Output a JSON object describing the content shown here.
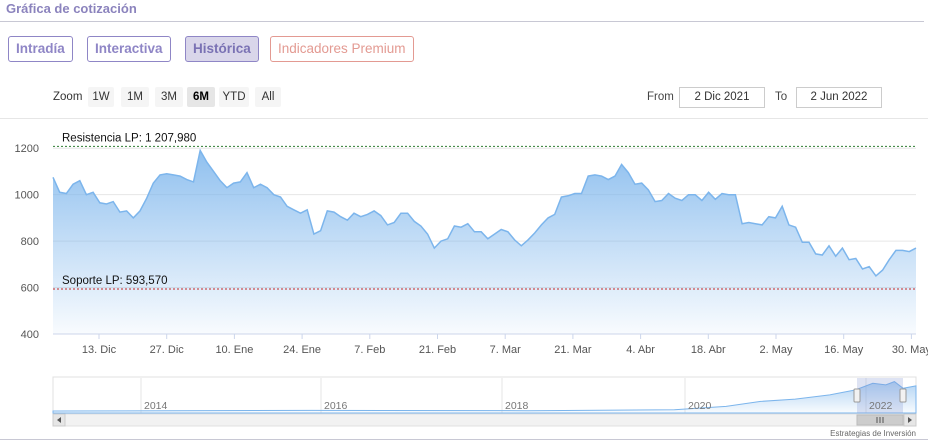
{
  "title": "Gráfica de cotización",
  "tabs": [
    {
      "label": "Intradía"
    },
    {
      "label": "Interactiva"
    },
    {
      "label": "Histórica",
      "active": true
    },
    {
      "label": "Indicadores Premium"
    }
  ],
  "zoom": {
    "label": "Zoom",
    "buttons": [
      "1W",
      "1M",
      "3M",
      "6M",
      "YTD",
      "All"
    ],
    "selected": "6M"
  },
  "range": {
    "from_label": "From",
    "from_value": "2 Dic 2021",
    "to_label": "To",
    "to_value": "2 Jun 2022"
  },
  "colors": {
    "accent": "#8f86c6",
    "premium": "#e39a92",
    "series_line": "#7cb5ec",
    "resistance_line": "#2e7d32",
    "support_line": "#c62828"
  },
  "chart_data": {
    "type": "area",
    "xlabel": "",
    "ylabel": "",
    "ylim": [
      400,
      1300
    ],
    "yticks": [
      400,
      600,
      800,
      1000,
      1200
    ],
    "xticks": [
      "13. Dic",
      "27. Dic",
      "10. Ene",
      "24. Ene",
      "7. Feb",
      "21. Feb",
      "7. Mar",
      "21. Mar",
      "4. Abr",
      "18. Abr",
      "2. May",
      "16. May",
      "30. May"
    ],
    "grid": true,
    "annotations": [
      {
        "label": "Resistencia LP: 1 207,980",
        "value": 1207.98,
        "kind": "resistance"
      },
      {
        "label": "Soporte LP: 593,570",
        "value": 593.57,
        "kind": "support"
      }
    ],
    "series": [
      {
        "values": [
          1075,
          1010,
          1005,
          1045,
          1060,
          1000,
          1010,
          965,
          960,
          970,
          925,
          930,
          900,
          930,
          985,
          1050,
          1085,
          1090,
          1085,
          1080,
          1065,
          1055,
          1190,
          1140,
          1100,
          1060,
          1030,
          1050,
          1055,
          1095,
          1030,
          1045,
          1030,
          1000,
          990,
          950,
          935,
          920,
          935,
          830,
          845,
          930,
          925,
          905,
          890,
          920,
          905,
          915,
          930,
          910,
          870,
          880,
          920,
          920,
          885,
          865,
          830,
          770,
          800,
          810,
          865,
          860,
          875,
          840,
          840,
          810,
          830,
          850,
          840,
          805,
          780,
          805,
          835,
          870,
          900,
          915,
          990,
          995,
          1005,
          1005,
          1080,
          1085,
          1080,
          1065,
          1080,
          1130,
          1095,
          1045,
          1050,
          1020,
          970,
          975,
          1005,
          985,
          975,
          1000,
          1000,
          975,
          1010,
          980,
          1005,
          1000,
          1000,
          875,
          880,
          875,
          870,
          905,
          900,
          950,
          870,
          860,
          795,
          795,
          745,
          740,
          780,
          735,
          770,
          720,
          725,
          680,
          690,
          650,
          675,
          720,
          760,
          760,
          755,
          770
        ]
      }
    ]
  },
  "navigator": {
    "year_labels": [
      "2014",
      "2016",
      "2018",
      "2020",
      "2022"
    ],
    "credit": "Estrategias de Inversión"
  }
}
